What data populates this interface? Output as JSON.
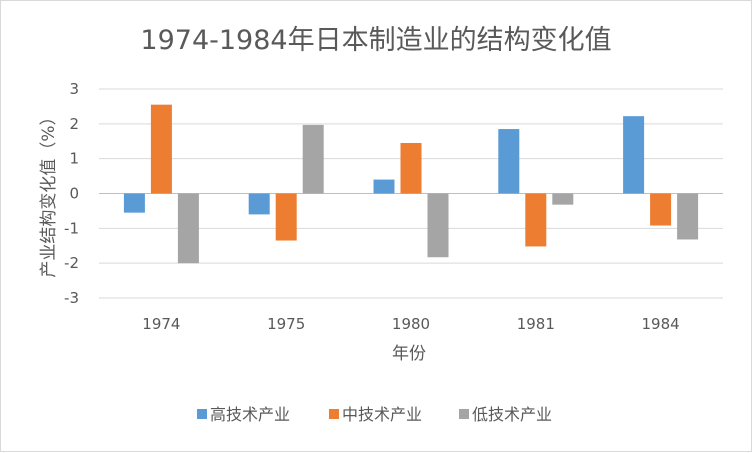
{
  "chart_data": {
    "type": "bar",
    "title": "1974-1984年日本制造业的结构变化值",
    "xlabel": "年份",
    "ylabel": "产业结构变化值（%）",
    "categories": [
      "1974",
      "1975",
      "1980",
      "1981",
      "1984"
    ],
    "ylim": [
      -3,
      3
    ],
    "yticks": [
      3,
      2,
      1,
      0,
      -1,
      -2,
      -3
    ],
    "grid": true,
    "legend_position": "bottom",
    "series": [
      {
        "name": "高技术产业",
        "color": "#5b9bd5",
        "values": [
          -0.55,
          -0.6,
          0.4,
          1.85,
          2.22
        ]
      },
      {
        "name": "中技术产业",
        "color": "#ed7d31",
        "values": [
          2.55,
          -1.35,
          1.45,
          -1.52,
          -0.92
        ]
      },
      {
        "name": "低技术产业",
        "color": "#a5a5a5",
        "values": [
          -2.0,
          1.97,
          -1.83,
          -0.32,
          -1.32
        ]
      }
    ]
  }
}
